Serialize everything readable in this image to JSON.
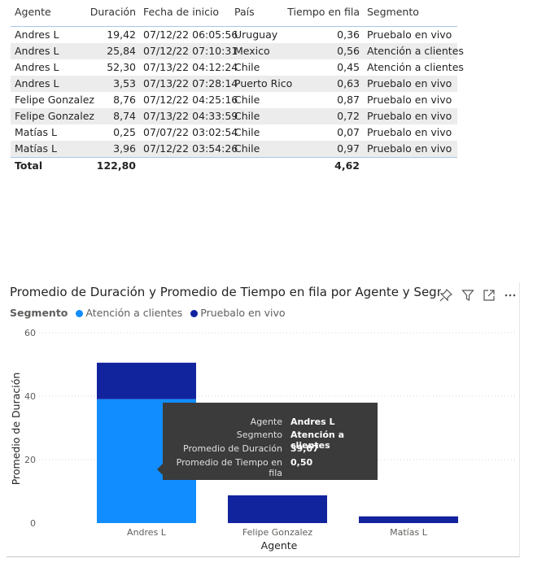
{
  "table": {
    "headers": [
      "Agente",
      "Duración",
      "Fecha de inicio",
      "País",
      "Tiempo en fila",
      "Segmento"
    ],
    "rows": [
      [
        "Andres L",
        "19,42",
        "07/12/22 06:05:56",
        "Uruguay",
        "0,36",
        "Pruebalo en vivo"
      ],
      [
        "Andres L",
        "25,84",
        "07/12/22 07:10:31",
        "Mexico",
        "0,56",
        "Atención a clientes"
      ],
      [
        "Andres L",
        "52,30",
        "07/13/22 04:12:24",
        "Chile",
        "0,45",
        "Atención a clientes"
      ],
      [
        "Andres L",
        "3,53",
        "07/13/22 07:28:14",
        "Puerto Rico",
        "0,63",
        "Pruebalo en vivo"
      ],
      [
        "Felipe Gonzalez",
        "8,76",
        "07/12/22 04:25:16",
        "Chile",
        "0,87",
        "Pruebalo en vivo"
      ],
      [
        "Felipe Gonzalez",
        "8,74",
        "07/13/22 04:33:59",
        "Chile",
        "0,72",
        "Pruebalo en vivo"
      ],
      [
        "Matías L",
        "0,25",
        "07/07/22 03:02:54",
        "Chile",
        "0,07",
        "Pruebalo en vivo"
      ],
      [
        "Matías L",
        "3,96",
        "07/12/22 03:54:26",
        "Chile",
        "0,97",
        "Pruebalo en vivo"
      ]
    ],
    "total": {
      "label": "Total",
      "duracion": "122,80",
      "tiempo": "4,62"
    }
  },
  "chart_data": {
    "type": "bar",
    "stacked": true,
    "title": "Promedio de Duración y Promedio de Tiempo en fila por Agente y Segment",
    "legend_title": "Segmento",
    "legend_position": "top-left",
    "categories": [
      "Andres L",
      "Felipe Gonzalez",
      "Matías L"
    ],
    "series": [
      {
        "name": "Atención a clientes",
        "color": "#118dff",
        "values": [
          39.07,
          0,
          0
        ]
      },
      {
        "name": "Pruebalo en vivo",
        "color": "#12239e",
        "values": [
          11.48,
          8.75,
          2.11
        ]
      }
    ],
    "xlabel": "Agente",
    "ylabel": "Promedio de Duración",
    "ylim": [
      0,
      60
    ],
    "yticks": [
      0,
      20,
      40,
      60
    ],
    "grid": true
  },
  "tooltip": [
    {
      "key": "Agente",
      "value": "Andres L"
    },
    {
      "key": "Segmento",
      "value": "Atención a clientes"
    },
    {
      "key": "Promedio de Duración",
      "value": "39,07"
    },
    {
      "key": "Promedio de Tiempo en fila",
      "value": "0,50"
    }
  ],
  "icons": [
    "pin-icon",
    "filter-icon",
    "focus-mode-icon",
    "more-options-icon"
  ]
}
